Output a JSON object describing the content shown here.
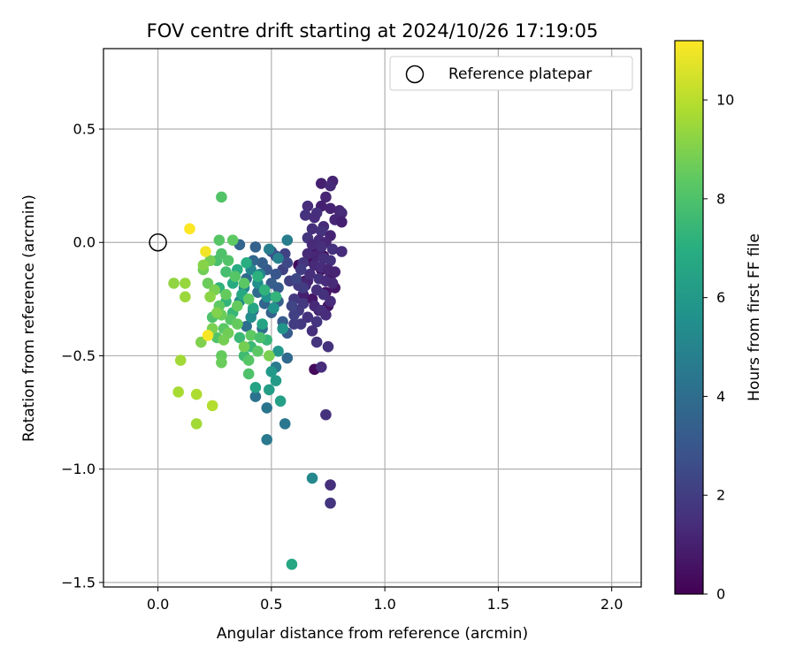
{
  "chart_data": {
    "type": "scatter",
    "title": "FOV centre drift starting at 2024/10/26 17:19:05",
    "xlabel": "Angular distance from reference (arcmin)",
    "ylabel": "Rotation from reference (arcmin)",
    "xlim": [
      -0.24,
      2.13
    ],
    "ylim": [
      -1.52,
      0.855
    ],
    "xticks": [
      0.0,
      0.5,
      1.0,
      1.5,
      2.0
    ],
    "xtick_labels": [
      "0.0",
      "0.5",
      "1.0",
      "1.5",
      "2.0"
    ],
    "yticks": [
      0.5,
      0.0,
      -0.5,
      -1.0,
      -1.5
    ],
    "ytick_labels": [
      "0.5",
      "0.0",
      "−0.5",
      "−1.0",
      "−1.5"
    ],
    "grid": true,
    "colorbar": {
      "label": "Hours from first FF file",
      "colormap": "viridis",
      "range": [
        0,
        11.2
      ],
      "ticks": [
        0,
        2,
        4,
        6,
        8,
        10
      ],
      "tick_labels": [
        "0",
        "2",
        "4",
        "6",
        "8",
        "10"
      ]
    },
    "legend": {
      "location": "upper right",
      "label": "Reference platepar",
      "marker": "open circle"
    },
    "reference_point": {
      "x": 0.0,
      "y": 0.0
    },
    "points": [
      [
        0.62,
        -0.1,
        0.3
      ],
      [
        0.65,
        -0.17,
        0.4
      ],
      [
        0.67,
        -0.08,
        0.5
      ],
      [
        0.7,
        -0.03,
        0.6
      ],
      [
        0.72,
        -0.12,
        0.3
      ],
      [
        0.74,
        -0.22,
        0.5
      ],
      [
        0.76,
        -0.15,
        0.8
      ],
      [
        0.68,
        -0.25,
        0.7
      ],
      [
        0.71,
        -0.3,
        0.9
      ],
      [
        0.64,
        -0.23,
        1.0
      ],
      [
        0.73,
        -0.06,
        0.4
      ],
      [
        0.69,
        -0.56,
        0.3
      ],
      [
        0.66,
        -0.17,
        1.2
      ],
      [
        0.75,
        -0.28,
        0.6
      ],
      [
        0.78,
        -0.2,
        0.7
      ],
      [
        0.72,
        0.26,
        1.0
      ],
      [
        0.77,
        0.27,
        1.1
      ],
      [
        0.76,
        0.25,
        1.3
      ],
      [
        0.74,
        0.2,
        1.2
      ],
      [
        0.66,
        0.16,
        1.4
      ],
      [
        0.72,
        0.16,
        1.0
      ],
      [
        0.76,
        0.15,
        1.1
      ],
      [
        0.8,
        0.14,
        1.2
      ],
      [
        0.81,
        0.13,
        1.3
      ],
      [
        0.7,
        0.13,
        1.5
      ],
      [
        0.65,
        0.12,
        1.6
      ],
      [
        0.69,
        0.11,
        1.4
      ],
      [
        0.78,
        0.1,
        1.2
      ],
      [
        0.81,
        0.09,
        1.0
      ],
      [
        0.73,
        0.07,
        1.3
      ],
      [
        0.68,
        0.06,
        1.5
      ],
      [
        0.72,
        0.05,
        1.6
      ],
      [
        0.76,
        0.03,
        1.1
      ],
      [
        0.66,
        0.02,
        1.7
      ],
      [
        0.71,
        0.01,
        1.4
      ],
      [
        0.74,
        0.0,
        1.2
      ],
      [
        0.68,
        -0.01,
        1.3
      ],
      [
        0.72,
        -0.02,
        1.5
      ],
      [
        0.77,
        -0.03,
        1.6
      ],
      [
        0.81,
        -0.04,
        1.4
      ],
      [
        0.66,
        -0.05,
        1.3
      ],
      [
        0.7,
        -0.06,
        1.2
      ],
      [
        0.73,
        -0.07,
        1.5
      ],
      [
        0.76,
        -0.08,
        1.6
      ],
      [
        0.64,
        -0.09,
        1.7
      ],
      [
        0.69,
        -0.1,
        1.3
      ],
      [
        0.72,
        -0.11,
        1.4
      ],
      [
        0.75,
        -0.12,
        1.2
      ],
      [
        0.78,
        -0.13,
        1.1
      ],
      [
        0.67,
        -0.14,
        1.5
      ],
      [
        0.71,
        -0.16,
        1.6
      ],
      [
        0.74,
        -0.17,
        1.4
      ],
      [
        0.77,
        -0.18,
        1.3
      ],
      [
        0.65,
        -0.19,
        1.2
      ],
      [
        0.7,
        -0.21,
        1.5
      ],
      [
        0.73,
        -0.23,
        1.6
      ],
      [
        0.76,
        -0.26,
        1.4
      ],
      [
        0.64,
        -0.27,
        1.8
      ],
      [
        0.69,
        -0.28,
        1.3
      ],
      [
        0.72,
        -0.3,
        1.5
      ],
      [
        0.66,
        -0.33,
        1.6
      ],
      [
        0.7,
        -0.35,
        1.7
      ],
      [
        0.74,
        -0.32,
        1.4
      ],
      [
        0.63,
        -0.36,
        1.8
      ],
      [
        0.68,
        -0.39,
        1.5
      ],
      [
        0.75,
        -0.46,
        1.6
      ],
      [
        0.7,
        -0.44,
        1.7
      ],
      [
        0.72,
        -0.55,
        1.4
      ],
      [
        0.74,
        -0.76,
        1.6
      ],
      [
        0.76,
        -1.07,
        1.5
      ],
      [
        0.76,
        -1.15,
        1.7
      ],
      [
        0.6,
        -0.25,
        1.8
      ],
      [
        0.62,
        -0.3,
        1.9
      ],
      [
        0.6,
        -0.36,
        2.0
      ],
      [
        0.58,
        -0.17,
        2.1
      ],
      [
        0.55,
        -0.12,
        2.2
      ],
      [
        0.52,
        -0.06,
        2.3
      ],
      [
        0.56,
        -0.05,
        2.2
      ],
      [
        0.63,
        -0.12,
        2.0
      ],
      [
        0.62,
        -0.19,
        1.9
      ],
      [
        0.6,
        -0.32,
        2.1
      ],
      [
        0.64,
        -0.2,
        2.0
      ],
      [
        0.59,
        -0.28,
        2.3
      ],
      [
        0.61,
        -0.16,
        2.4
      ],
      [
        0.57,
        -0.09,
        2.5
      ],
      [
        0.5,
        -0.04,
        2.8
      ],
      [
        0.52,
        -0.14,
        3.0
      ],
      [
        0.48,
        -0.12,
        3.1
      ],
      [
        0.53,
        -0.2,
        3.2
      ],
      [
        0.5,
        -0.18,
        3.3
      ],
      [
        0.46,
        -0.09,
        3.4
      ],
      [
        0.43,
        -0.02,
        3.5
      ],
      [
        0.36,
        -0.01,
        3.6
      ],
      [
        0.42,
        -0.08,
        3.7
      ],
      [
        0.39,
        -0.16,
        3.8
      ],
      [
        0.44,
        -0.22,
        3.9
      ],
      [
        0.47,
        -0.27,
        3.6
      ],
      [
        0.5,
        -0.31,
        3.5
      ],
      [
        0.53,
        -0.26,
        3.4
      ],
      [
        0.55,
        -0.35,
        3.3
      ],
      [
        0.57,
        -0.4,
        3.2
      ],
      [
        0.42,
        -0.3,
        3.9
      ],
      [
        0.39,
        -0.37,
        4.0
      ],
      [
        0.46,
        -0.38,
        4.1
      ],
      [
        0.43,
        -0.68,
        4.2
      ],
      [
        0.48,
        -0.73,
        4.3
      ],
      [
        0.56,
        -0.8,
        4.4
      ],
      [
        0.48,
        -0.87,
        4.5
      ],
      [
        0.57,
        -0.51,
        3.8
      ],
      [
        0.52,
        -0.55,
        4.6
      ],
      [
        0.57,
        0.01,
        4.7
      ],
      [
        0.49,
        -0.03,
        4.8
      ],
      [
        0.53,
        -0.07,
        4.9
      ],
      [
        0.45,
        -0.14,
        5.0
      ],
      [
        0.41,
        -0.12,
        5.1
      ],
      [
        0.38,
        -0.2,
        5.2
      ],
      [
        0.36,
        -0.26,
        5.3
      ],
      [
        0.41,
        -0.33,
        5.4
      ],
      [
        0.44,
        -0.18,
        5.5
      ],
      [
        0.48,
        -0.24,
        5.6
      ],
      [
        0.51,
        -0.29,
        5.7
      ],
      [
        0.55,
        -0.38,
        5.8
      ],
      [
        0.53,
        -0.48,
        5.9
      ],
      [
        0.5,
        -0.57,
        6.0
      ],
      [
        0.52,
        -0.61,
        6.1
      ],
      [
        0.49,
        -0.65,
        6.2
      ],
      [
        0.54,
        -0.7,
        6.3
      ],
      [
        0.43,
        -0.64,
        6.4
      ],
      [
        0.68,
        -1.04,
        5.2
      ],
      [
        0.59,
        -1.42,
        6.6
      ],
      [
        0.46,
        -0.36,
        6.5
      ],
      [
        0.42,
        -0.29,
        6.6
      ],
      [
        0.37,
        -0.23,
        6.7
      ],
      [
        0.33,
        -0.18,
        6.8
      ],
      [
        0.35,
        -0.12,
        6.9
      ],
      [
        0.39,
        -0.09,
        7.0
      ],
      [
        0.44,
        -0.15,
        7.1
      ],
      [
        0.47,
        -0.21,
        7.2
      ],
      [
        0.52,
        -0.24,
        7.3
      ],
      [
        0.48,
        -0.43,
        7.4
      ],
      [
        0.41,
        -0.46,
        7.5
      ],
      [
        0.38,
        -0.5,
        7.6
      ],
      [
        0.36,
        -0.42,
        7.5
      ],
      [
        0.33,
        -0.31,
        7.4
      ],
      [
        0.3,
        -0.26,
        7.3
      ],
      [
        0.27,
        -0.2,
        7.2
      ],
      [
        0.3,
        -0.13,
        7.8
      ],
      [
        0.26,
        -0.08,
        7.9
      ],
      [
        0.28,
        -0.05,
        8.0
      ],
      [
        0.31,
        -0.08,
        8.1
      ],
      [
        0.34,
        -0.15,
        8.2
      ],
      [
        0.38,
        -0.18,
        8.3
      ],
      [
        0.4,
        -0.25,
        8.4
      ],
      [
        0.35,
        -0.28,
        8.5
      ],
      [
        0.32,
        -0.34,
        8.2
      ],
      [
        0.29,
        -0.38,
        8.3
      ],
      [
        0.26,
        -0.42,
        8.1
      ],
      [
        0.24,
        -0.33,
        8.0
      ],
      [
        0.27,
        -0.28,
        8.4
      ],
      [
        0.3,
        -0.23,
        8.5
      ],
      [
        0.22,
        -0.18,
        8.6
      ],
      [
        0.2,
        -0.12,
        8.7
      ],
      [
        0.23,
        -0.08,
        8.8
      ],
      [
        0.25,
        -0.21,
        8.9
      ],
      [
        0.28,
        -0.32,
        8.6
      ],
      [
        0.31,
        -0.4,
        8.7
      ],
      [
        0.35,
        -0.36,
        8.5
      ],
      [
        0.38,
        -0.46,
        8.8
      ],
      [
        0.41,
        -0.41,
        8.4
      ],
      [
        0.4,
        -0.52,
        8.2
      ],
      [
        0.44,
        -0.48,
        8.3
      ],
      [
        0.4,
        -0.58,
        8.0
      ],
      [
        0.45,
        -0.42,
        7.9
      ],
      [
        0.28,
        0.2,
        8.1
      ],
      [
        0.27,
        0.01,
        8.2
      ],
      [
        0.33,
        0.01,
        8.4
      ],
      [
        0.28,
        -0.5,
        8.5
      ],
      [
        0.28,
        -0.53,
        8.6
      ],
      [
        0.24,
        -0.38,
        8.9
      ],
      [
        0.19,
        -0.44,
        9.0
      ],
      [
        0.2,
        -0.1,
        9.1
      ],
      [
        0.23,
        -0.24,
        9.2
      ],
      [
        0.26,
        -0.31,
        9.0
      ],
      [
        0.29,
        -0.43,
        8.8
      ],
      [
        0.49,
        -0.5,
        8.9
      ],
      [
        0.07,
        -0.18,
        9.3
      ],
      [
        0.12,
        -0.18,
        9.4
      ],
      [
        0.12,
        -0.24,
        9.5
      ],
      [
        0.1,
        -0.52,
        9.6
      ],
      [
        0.09,
        -0.66,
        9.7
      ],
      [
        0.17,
        -0.67,
        9.8
      ],
      [
        0.24,
        -0.72,
        9.9
      ],
      [
        0.17,
        -0.8,
        9.6
      ],
      [
        0.21,
        -0.04,
        11.0
      ],
      [
        0.14,
        0.06,
        11.2
      ],
      [
        0.22,
        -0.41,
        11.1
      ]
    ]
  }
}
